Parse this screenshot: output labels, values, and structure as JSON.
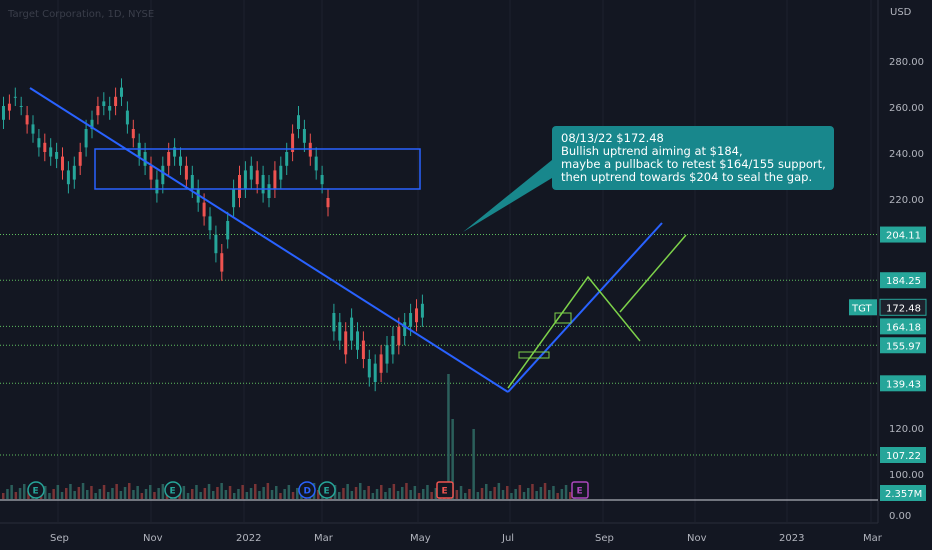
{
  "chart_data": {
    "type": "candlestick",
    "title": "Target Corporation, 1D, NYSE",
    "currency": "USD",
    "ticker": "TGT",
    "y_ticks": [
      "280.00",
      "260.00",
      "240.00",
      "220.00",
      "120.00",
      "100.00",
      "0.00"
    ],
    "x_ticks": [
      "Sep",
      "Nov",
      "2022",
      "Mar",
      "May",
      "Jul",
      "Sep",
      "Nov",
      "2023",
      "Mar"
    ],
    "price_markers": [
      {
        "label": "204.11",
        "value": 204.11
      },
      {
        "label": "184.25",
        "value": 184.25
      },
      {
        "label": "172.48",
        "value": 172.48,
        "ticker": "TGT"
      },
      {
        "label": "164.18",
        "value": 164.18
      },
      {
        "label": "155.97",
        "value": 155.97
      },
      {
        "label": "139.43",
        "value": 139.43
      },
      {
        "label": "107.22",
        "value": 107.22
      }
    ],
    "volume_label": "2.357M",
    "annotation": [
      "08/13/22 $172.48",
      "Bullish uptrend aiming at $184,",
      "maybe a pullback to retest $164/155 support,",
      "then uptrend towards $204 to seal the gap."
    ],
    "events": [
      {
        "letter": "E",
        "kind": "earnings"
      },
      {
        "letter": "E",
        "kind": "earnings"
      },
      {
        "letter": "D",
        "kind": "dividend"
      },
      {
        "letter": "E",
        "kind": "earnings"
      },
      {
        "letter": "E",
        "kind": "earnings-miss"
      },
      {
        "letter": "E",
        "kind": "earnings-upcoming"
      }
    ],
    "price_path": [
      [
        252,
        262
      ],
      [
        256,
        263
      ],
      [
        262,
        266
      ],
      [
        258,
        262
      ],
      [
        250,
        258
      ],
      [
        246,
        254
      ],
      [
        240,
        248
      ],
      [
        238,
        246
      ],
      [
        236,
        244
      ],
      [
        235,
        242
      ],
      [
        230,
        240
      ],
      [
        224,
        234
      ],
      [
        226,
        236
      ],
      [
        232,
        242
      ],
      [
        240,
        252
      ],
      [
        248,
        256
      ],
      [
        254,
        262
      ],
      [
        258,
        264
      ],
      [
        256,
        262
      ],
      [
        258,
        266
      ],
      [
        262,
        270
      ],
      [
        250,
        260
      ],
      [
        244,
        252
      ],
      [
        236,
        246
      ],
      [
        232,
        242
      ],
      [
        226,
        236
      ],
      [
        220,
        230
      ],
      [
        224,
        236
      ],
      [
        232,
        242
      ],
      [
        236,
        244
      ],
      [
        232,
        240
      ],
      [
        226,
        236
      ],
      [
        222,
        232
      ],
      [
        216,
        226
      ],
      [
        210,
        220
      ],
      [
        204,
        214
      ],
      [
        194,
        206
      ],
      [
        186,
        198
      ],
      [
        200,
        212
      ],
      [
        214,
        226
      ],
      [
        218,
        232
      ],
      [
        222,
        234
      ],
      [
        226,
        236
      ],
      [
        224,
        234
      ],
      [
        220,
        232
      ],
      [
        218,
        228
      ],
      [
        222,
        234
      ],
      [
        226,
        236
      ],
      [
        232,
        242
      ],
      [
        238,
        250
      ],
      [
        248,
        258
      ],
      [
        242,
        252
      ],
      [
        236,
        246
      ],
      [
        230,
        240
      ],
      [
        224,
        232
      ],
      [
        214,
        222
      ],
      [
        160,
        172
      ],
      [
        156,
        168
      ],
      [
        150,
        164
      ],
      [
        156,
        170
      ],
      [
        152,
        164
      ],
      [
        148,
        160
      ],
      [
        140,
        152
      ],
      [
        138,
        150
      ],
      [
        142,
        154
      ],
      [
        146,
        158
      ],
      [
        150,
        162
      ],
      [
        154,
        166
      ],
      [
        158,
        168
      ],
      [
        162,
        172
      ],
      [
        164,
        174
      ],
      [
        166,
        176
      ]
    ]
  },
  "colors": {
    "background": "#131722",
    "up": "#26a69a",
    "down": "#ef5350",
    "trend_blue": "#2962ff",
    "channel_green": "#7dd24a",
    "annotation_bg": "#18878c",
    "grid_level": "#5fbf5f"
  }
}
